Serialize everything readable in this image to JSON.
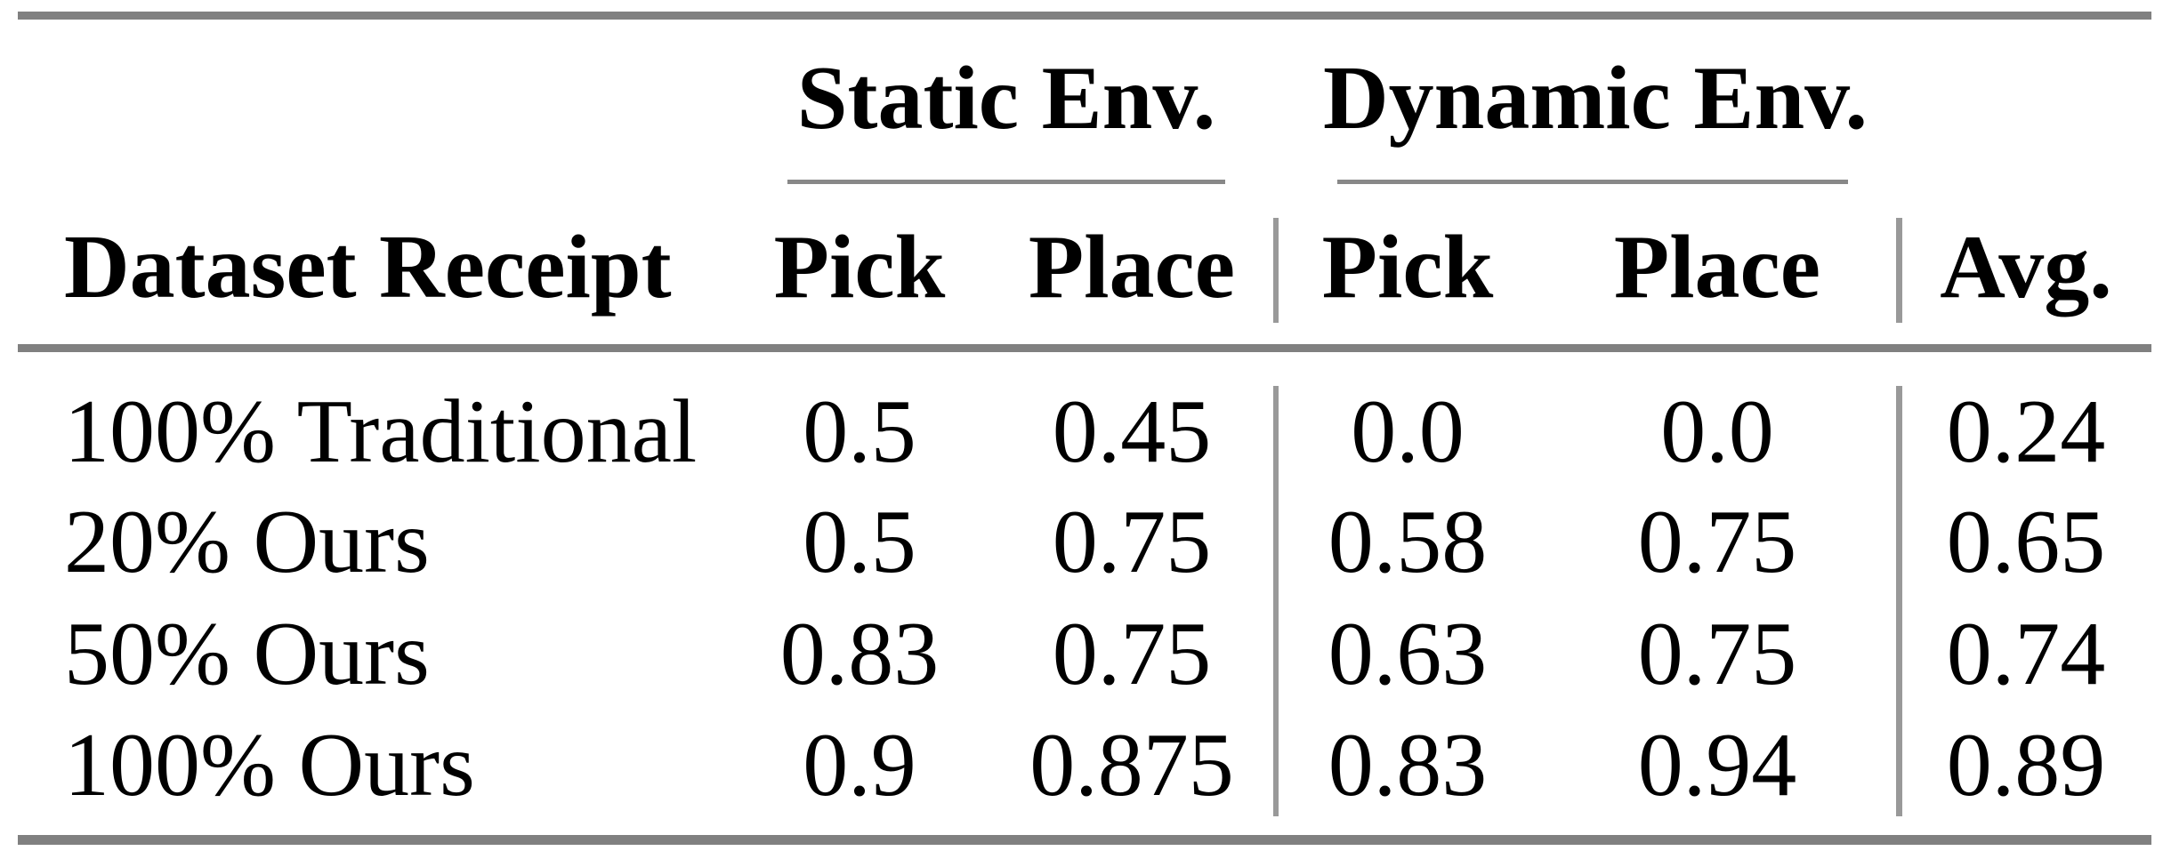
{
  "table": {
    "group_headers": [
      {
        "label": "Static Env."
      },
      {
        "label": "Dynamic Env."
      }
    ],
    "columns": [
      "Dataset Receipt",
      "Pick",
      "Place",
      "Pick",
      "Place",
      "Avg."
    ],
    "rows": [
      {
        "label": "100% Traditional",
        "values": [
          "0.5",
          "0.45",
          "0.0",
          "0.0",
          "0.24"
        ]
      },
      {
        "label": "20% Ours",
        "values": [
          "0.5",
          "0.75",
          "0.58",
          "0.75",
          "0.65"
        ]
      },
      {
        "label": "50% Ours",
        "values": [
          "0.83",
          "0.75",
          "0.63",
          "0.75",
          "0.74"
        ]
      },
      {
        "label": "100% Ours",
        "values": [
          "0.9",
          "0.875",
          "0.83",
          "0.94",
          "0.89"
        ]
      }
    ],
    "colors": {
      "thick_rule": "#808080",
      "cmidrule": "#888888",
      "vertical_separator": "#999999",
      "text": "#000000",
      "background": "#ffffff"
    }
  },
  "chart_data": {
    "type": "table",
    "title": "",
    "column_groups": [
      "",
      "Static Env.",
      "Static Env.",
      "Dynamic Env.",
      "Dynamic Env.",
      ""
    ],
    "columns": [
      "Dataset Receipt",
      "Pick",
      "Place",
      "Pick",
      "Place",
      "Avg."
    ],
    "rows": [
      [
        "100% Traditional",
        0.5,
        0.45,
        0.0,
        0.0,
        0.24
      ],
      [
        "20% Ours",
        0.5,
        0.75,
        0.58,
        0.75,
        0.65
      ],
      [
        "50% Ours",
        0.83,
        0.75,
        0.63,
        0.75,
        0.74
      ],
      [
        "100% Ours",
        0.9,
        0.875,
        0.83,
        0.94,
        0.89
      ]
    ]
  }
}
